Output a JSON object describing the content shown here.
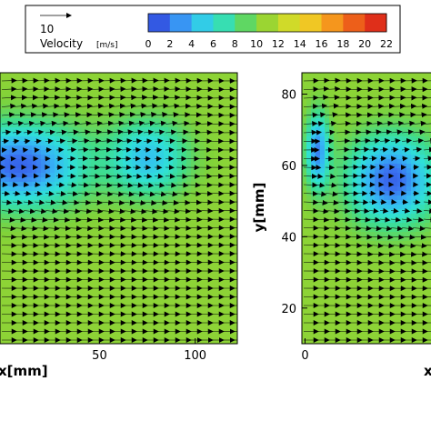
{
  "chart_data": {
    "type": "heatmap",
    "subtype": "velocity-vector-field",
    "colorbar": {
      "label": "Velocity",
      "unit": "[m/s]",
      "ticks": [
        0,
        2,
        4,
        6,
        8,
        10,
        12,
        14,
        16,
        18,
        20,
        22
      ],
      "range": [
        0,
        22
      ],
      "colors": [
        "#2b3fd6",
        "#3a72f0",
        "#35b8f5",
        "#2fe0d8",
        "#3fdc8c",
        "#7fd23a",
        "#b7d82a",
        "#e8dc28",
        "#f7b21f",
        "#f27a1a",
        "#e8431a",
        "#d61a1a"
      ]
    },
    "reference_vector": {
      "label": "10",
      "magnitude": 10,
      "unit": "m/s"
    },
    "panels": [
      {
        "id": "left",
        "xlabel": "x[mm]",
        "ylabel": "",
        "x_ticks": [
          50,
          100
        ],
        "y_ticks": [],
        "xlim": [
          -2,
          122
        ],
        "ylim": [
          10,
          86
        ],
        "background_speed": 10.5,
        "low_speed_zones": [
          {
            "cx": 8,
            "cy": 60,
            "rx": 42,
            "ry": 14,
            "speed": 1.5
          },
          {
            "cx": 75,
            "cy": 62,
            "rx": 26,
            "ry": 13,
            "speed": 4.5
          }
        ]
      },
      {
        "id": "right",
        "xlabel": "x",
        "ylabel": "y[mm]",
        "x_ticks": [
          0
        ],
        "y_ticks": [
          20,
          40,
          60,
          80
        ],
        "xlim": [
          -2,
          90
        ],
        "ylim": [
          10,
          86
        ],
        "background_speed": 10.5,
        "low_speed_zones": [
          {
            "cx": 8,
            "cy": 64,
            "rx": 9,
            "ry": 13,
            "speed": 2.5
          },
          {
            "cx": 55,
            "cy": 56,
            "rx": 34,
            "ry": 15,
            "speed": 1.5
          }
        ]
      }
    ]
  }
}
